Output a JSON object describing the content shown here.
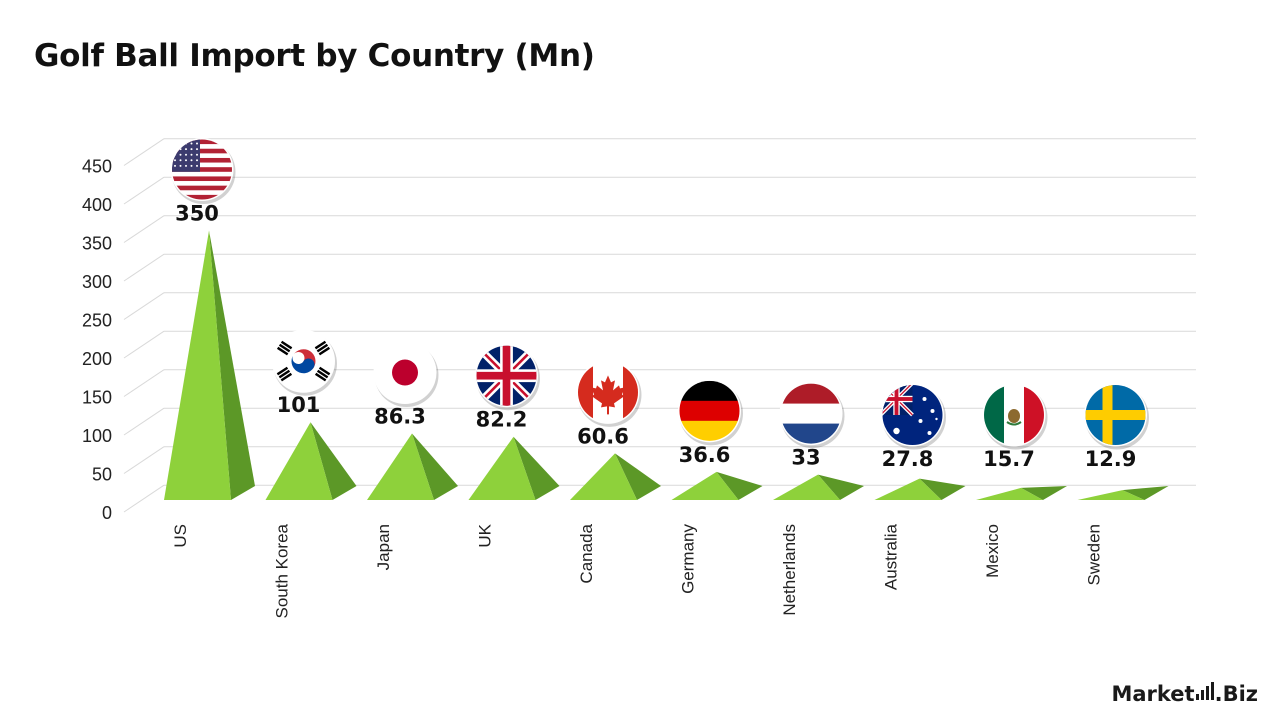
{
  "title": "Golf Ball Import by Country (Mn)",
  "brand": "Market.Biz",
  "colors": {
    "pyramid_front": "#8ed13b",
    "pyramid_side": "#5c9827",
    "grid": "#d9d9d9",
    "text": "#111111"
  },
  "chart_data": {
    "type": "bar",
    "title": "Golf Ball Import by Country (Mn)",
    "xlabel": "",
    "ylabel": "",
    "ylim": [
      0,
      450
    ],
    "yticks": [
      0,
      50,
      100,
      150,
      200,
      250,
      300,
      350,
      400,
      450
    ],
    "grid": true,
    "legend": "none",
    "categories": [
      "US",
      "South Korea",
      "Japan",
      "UK",
      "Canada",
      "Germany",
      "Netherlands",
      "Australia",
      "Mexico",
      "Sweden"
    ],
    "values": [
      350,
      101,
      86.3,
      82.2,
      60.6,
      36.6,
      33,
      27.8,
      15.7,
      12.9
    ],
    "data_labels": [
      "350",
      "101",
      "86.3",
      "82.2",
      "60.6",
      "36.6",
      "33",
      "27.8",
      "15.7",
      "12.9"
    ],
    "flags": [
      "us-flag-icon",
      "south-korea-flag-icon",
      "japan-flag-icon",
      "uk-flag-icon",
      "canada-flag-icon",
      "germany-flag-icon",
      "netherlands-flag-icon",
      "australia-flag-icon",
      "mexico-flag-icon",
      "sweden-flag-icon"
    ]
  }
}
